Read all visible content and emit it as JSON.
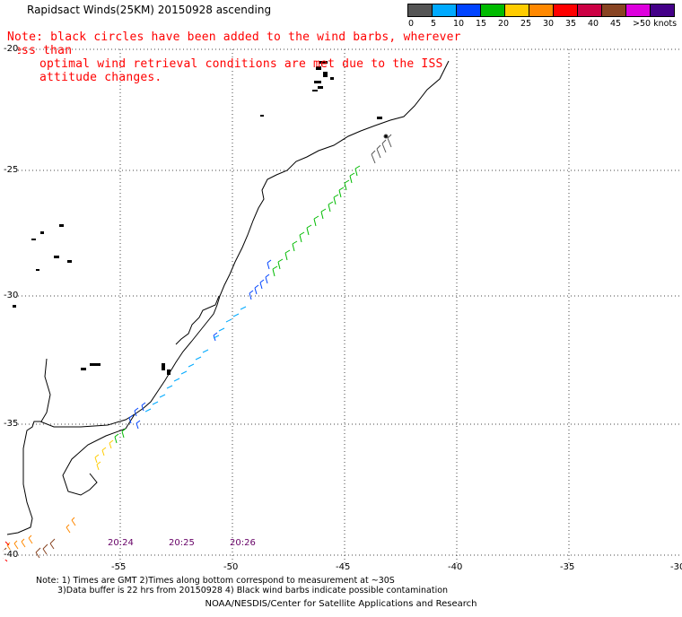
{
  "title": "Rapidsact Winds(25KM) 20150928 ascending",
  "note_line1": "Note: black circles have been added to the wind barbs, wherever less than",
  "note_line2": "optimal wind retrieval conditions are met due to the ISS attitude changes.",
  "legend": {
    "labels": [
      "0",
      "5",
      "10",
      "15",
      "20",
      "25",
      "30",
      "35",
      "40",
      "45",
      ">50 knots"
    ],
    "colors": [
      "#555555",
      "#00aaff",
      "#0044ff",
      "#00bb00",
      "#ffcc00",
      "#ff8800",
      "#ff0000",
      "#cc0044",
      "#884422",
      "#dd00dd",
      "#440088"
    ]
  },
  "lat_labels": [
    "-20",
    "-25",
    "-30",
    "-35",
    "-40"
  ],
  "lon_labels": [
    "-55",
    "-50",
    "-45",
    "-40",
    "-35",
    "-30"
  ],
  "time_labels": [
    "20:24",
    "20:25",
    "20:26"
  ],
  "footer_line1": "Note: 1) Times are GMT 2)Times along bottom correspond to measurement at ~30S",
  "footer_line2": "3)Data buffer is 22 hrs from 20150928 4) Black wind barbs indicate possible contamination",
  "credit": "NOAA/NESDIS/Center for Satellite Applications and Research"
}
